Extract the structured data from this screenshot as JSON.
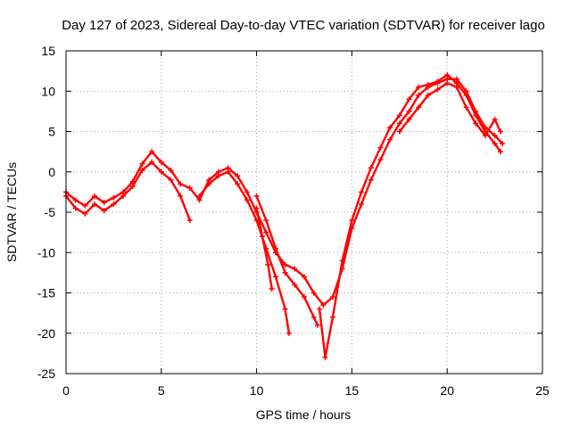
{
  "chart_data": {
    "type": "scatter",
    "title": "Day 127 of 2023, Sidereal Day-to-day VTEC variation (SDTVAR) for receiver lago",
    "xlabel": "GPS time / hours",
    "ylabel": "SDTVAR / TECUs",
    "xlim": [
      0,
      25
    ],
    "ylim": [
      -25,
      15
    ],
    "xticks": [
      0,
      5,
      10,
      15,
      20,
      25
    ],
    "yticks": [
      -25,
      -20,
      -15,
      -10,
      -5,
      0,
      5,
      10,
      15
    ],
    "grid": true,
    "marker": "+",
    "color": "#ff0000",
    "series": [
      {
        "points": [
          [
            0.0,
            -2.5
          ],
          [
            0.5,
            -3.5
          ],
          [
            1.0,
            -4.2
          ],
          [
            1.5,
            -3.0
          ],
          [
            2.0,
            -3.8
          ],
          [
            2.5,
            -3.2
          ],
          [
            3.0,
            -2.5
          ],
          [
            3.5,
            -1.2
          ],
          [
            4.0,
            1.0
          ],
          [
            4.5,
            2.5
          ],
          [
            5.0,
            1.2
          ],
          [
            5.5,
            0.2
          ],
          [
            6.0,
            -1.5
          ],
          [
            6.5,
            -2.0
          ],
          [
            7.0,
            -3.5
          ],
          [
            7.5,
            -1.0
          ],
          [
            8.0,
            0.0
          ],
          [
            8.5,
            0.5
          ],
          [
            9.0,
            -0.5
          ],
          [
            9.5,
            -2.5
          ],
          [
            10.0,
            -5.0
          ],
          [
            10.5,
            -7.5
          ],
          [
            11.0,
            -10.0
          ],
          [
            11.5,
            -11.5
          ],
          [
            12.0,
            -12.0
          ],
          [
            12.5,
            -13.0
          ],
          [
            13.0,
            -15.0
          ],
          [
            13.5,
            -16.5
          ],
          [
            14.0,
            -15.5
          ],
          [
            14.5,
            -12.0
          ],
          [
            15.0,
            -7.0
          ],
          [
            15.5,
            -4.0
          ],
          [
            16.0,
            -1.0
          ],
          [
            16.5,
            1.5
          ],
          [
            17.0,
            4.0
          ],
          [
            17.5,
            6.0
          ],
          [
            18.0,
            7.5
          ],
          [
            18.5,
            9.5
          ],
          [
            19.0,
            10.5
          ],
          [
            19.5,
            11.0
          ],
          [
            20.0,
            11.5
          ],
          [
            20.5,
            11.5
          ],
          [
            21.0,
            10.0
          ],
          [
            21.5,
            7.5
          ],
          [
            22.0,
            5.5
          ],
          [
            22.5,
            4.5
          ],
          [
            22.9,
            3.5
          ]
        ]
      },
      {
        "points": [
          [
            0.0,
            -3.0
          ],
          [
            0.5,
            -4.5
          ],
          [
            1.0,
            -5.2
          ],
          [
            1.5,
            -4.0
          ],
          [
            2.0,
            -4.8
          ],
          [
            2.5,
            -4.0
          ],
          [
            3.0,
            -3.0
          ],
          [
            3.5,
            -1.8
          ],
          [
            4.0,
            0.2
          ],
          [
            4.5,
            1.2
          ],
          [
            5.0,
            0.0
          ],
          [
            5.5,
            -1.0
          ],
          [
            6.0,
            -3.0
          ],
          [
            6.5,
            -6.0
          ]
        ]
      },
      {
        "points": [
          [
            7.0,
            -3.0
          ],
          [
            7.5,
            -1.5
          ],
          [
            8.0,
            -0.5
          ],
          [
            8.5,
            0.0
          ],
          [
            9.0,
            -1.5
          ],
          [
            9.5,
            -3.5
          ],
          [
            10.0,
            -6.0
          ],
          [
            10.5,
            -9.5
          ],
          [
            11.0,
            -13.0
          ],
          [
            11.5,
            -17.0
          ],
          [
            11.7,
            -20.0
          ]
        ]
      },
      {
        "points": [
          [
            10.0,
            -3.0
          ],
          [
            10.5,
            -6.0
          ],
          [
            11.0,
            -9.5
          ],
          [
            11.5,
            -12.5
          ],
          [
            12.0,
            -14.0
          ],
          [
            12.5,
            -15.5
          ],
          [
            13.0,
            -18.0
          ],
          [
            13.2,
            -19.0
          ]
        ]
      },
      {
        "points": [
          [
            10.0,
            -4.5
          ],
          [
            10.3,
            -8.0
          ],
          [
            10.6,
            -11.5
          ],
          [
            10.8,
            -14.5
          ]
        ]
      },
      {
        "points": [
          [
            13.3,
            -17.0
          ],
          [
            13.6,
            -23.0
          ],
          [
            14.0,
            -18.0
          ],
          [
            14.5,
            -11.0
          ],
          [
            15.0,
            -6.0
          ],
          [
            15.5,
            -2.5
          ],
          [
            16.0,
            0.5
          ],
          [
            16.5,
            3.0
          ],
          [
            17.0,
            5.5
          ],
          [
            17.5,
            7.0
          ],
          [
            18.0,
            9.0
          ],
          [
            18.5,
            10.5
          ],
          [
            19.0,
            10.8
          ],
          [
            19.5,
            11.2
          ],
          [
            20.0,
            12.0
          ],
          [
            20.5,
            11.0
          ],
          [
            21.0,
            9.5
          ],
          [
            21.5,
            7.0
          ],
          [
            22.0,
            5.0
          ],
          [
            22.5,
            3.5
          ],
          [
            22.8,
            2.5
          ]
        ]
      },
      {
        "points": [
          [
            17.5,
            5.0
          ],
          [
            18.0,
            6.5
          ],
          [
            18.5,
            8.0
          ],
          [
            19.0,
            9.5
          ],
          [
            19.5,
            10.2
          ],
          [
            20.0,
            11.0
          ],
          [
            20.5,
            10.5
          ],
          [
            21.0,
            8.0
          ],
          [
            21.5,
            6.0
          ],
          [
            22.0,
            4.5
          ],
          [
            22.5,
            6.5
          ],
          [
            22.8,
            5.0
          ]
        ]
      }
    ]
  }
}
